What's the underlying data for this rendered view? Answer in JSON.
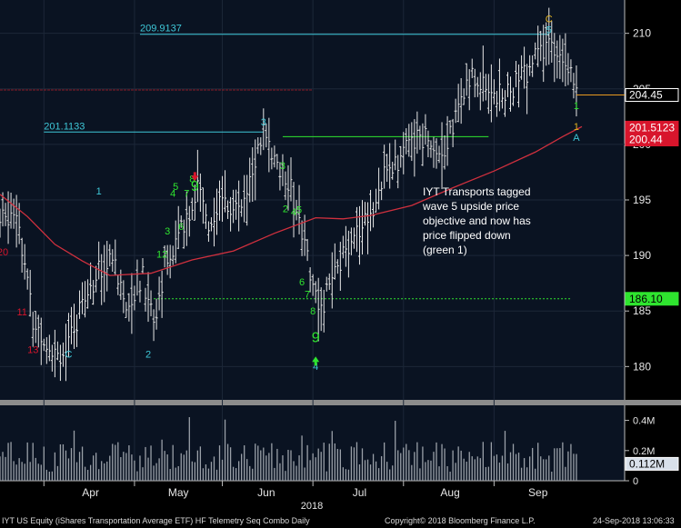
{
  "chart_data": {
    "type": "candlestick",
    "annotation": "IYT Transports tagged wave 5 upside price objective and now has price flipped down (green 1)",
    "x_axis": {
      "months": [
        "Apr",
        "May",
        "Jun",
        "Jul",
        "Aug",
        "Sep"
      ],
      "year": "2018"
    },
    "price_axis": {
      "ticks": [
        180,
        185,
        190,
        195,
        200,
        205,
        210
      ],
      "ylim": [
        177,
        213
      ]
    },
    "volume_axis": {
      "ticks": [
        "0.4M",
        "0.2M",
        "0"
      ],
      "ylim": [
        0,
        0.5
      ]
    },
    "moving_average": [
      [
        0,
        195.5
      ],
      [
        10,
        193.5
      ],
      [
        20,
        191
      ],
      [
        30,
        189.5
      ],
      [
        40,
        188.2
      ],
      [
        55,
        188.4
      ],
      [
        70,
        189.6
      ],
      [
        85,
        190.4
      ],
      [
        100,
        192
      ],
      [
        115,
        193.4
      ],
      [
        125,
        193.3
      ],
      [
        135,
        193.6
      ],
      [
        150,
        194.5
      ],
      [
        165,
        196.1
      ],
      [
        180,
        197.6
      ],
      [
        195,
        199.3
      ],
      [
        205,
        200.7
      ],
      [
        212,
        201.6
      ]
    ],
    "ohlc_path": [
      [
        0,
        193
      ],
      [
        6,
        194.5
      ],
      [
        12,
        184
      ],
      [
        18,
        182
      ],
      [
        24,
        181
      ],
      [
        32,
        187
      ],
      [
        40,
        190
      ],
      [
        46,
        186
      ],
      [
        52,
        188
      ],
      [
        56,
        184
      ],
      [
        60,
        189
      ],
      [
        66,
        192
      ],
      [
        72,
        196
      ],
      [
        76,
        193
      ],
      [
        80,
        195
      ],
      [
        86,
        194
      ],
      [
        92,
        197.5
      ],
      [
        96,
        201.3
      ],
      [
        100,
        198
      ],
      [
        104,
        197
      ],
      [
        108,
        194.5
      ],
      [
        112,
        190
      ],
      [
        116,
        185
      ],
      [
        120,
        187
      ],
      [
        124,
        189
      ],
      [
        128,
        192
      ],
      [
        134,
        193.5
      ],
      [
        140,
        197
      ],
      [
        144,
        198.5
      ],
      [
        150,
        200
      ],
      [
        156,
        201
      ],
      [
        160,
        199
      ],
      [
        164,
        201
      ],
      [
        168,
        204
      ],
      [
        172,
        206
      ],
      [
        178,
        205
      ],
      [
        184,
        204
      ],
      [
        190,
        206
      ],
      [
        196,
        208
      ],
      [
        200,
        209
      ],
      [
        204,
        208.5
      ],
      [
        206,
        208
      ],
      [
        208,
        207
      ],
      [
        210,
        204.5
      ]
    ],
    "reference_lines": [
      {
        "value": 209.9137,
        "label": "209.9137",
        "color": "#3ec8d8",
        "from": 51,
        "to": 200
      },
      {
        "value": 201.1133,
        "label": "201.1133",
        "color": "#3ec8d8",
        "from": 16,
        "to": 96
      },
      {
        "value": 200.7,
        "label": "",
        "color": "#2fe52f",
        "from": 103,
        "to": 178
      },
      {
        "value": 204.9,
        "label": "",
        "color": "#8a1c26",
        "from": 0,
        "to": 114
      },
      {
        "value": 186.1,
        "label": "",
        "color": "#2fe52f",
        "from": 56,
        "to": 208
      }
    ],
    "price_labels": [
      {
        "text": "204.45",
        "value": 204.45,
        "bg": "#000000",
        "fg": "#ffffff",
        "border": "#ffffff"
      },
      {
        "text": "201.5123",
        "value": 201.5123,
        "bg": "#d8152c",
        "fg": "#ffffff",
        "border": "#d8152c"
      },
      {
        "text": "200.44",
        "value": 200.44,
        "bg": "#d8152c",
        "fg": "#ffffff",
        "border": "#d8152c"
      },
      {
        "text": "186.10",
        "value": 186.1,
        "bg": "#2fe52f",
        "fg": "#000000",
        "border": "#2fe52f"
      }
    ],
    "volume_label": {
      "text": "0.112M",
      "value": 0.112
    },
    "wave_labels": [
      {
        "text": "C",
        "x": 200,
        "y": 211,
        "color": "#e0b020"
      },
      {
        "text": "5",
        "x": 200,
        "y": 210,
        "color": "#3ec8d8"
      },
      {
        "text": "3",
        "x": 96,
        "y": 201.7,
        "color": "#3ec8d8"
      },
      {
        "text": "1",
        "x": 36,
        "y": 195.5,
        "color": "#3ec8d8"
      },
      {
        "text": "2",
        "x": 54,
        "y": 180.8,
        "color": "#3ec8d8"
      },
      {
        "text": "4",
        "x": 115,
        "y": 179.7,
        "color": "#3ec8d8"
      },
      {
        "text": "C",
        "x": 25,
        "y": 180.8,
        "color": "#3ec8d8"
      },
      {
        "text": "1",
        "x": 210,
        "y": 203.2,
        "color": "#2fe52f"
      },
      {
        "text": "1",
        "x": 210,
        "y": 201.3,
        "color": "#e0b020"
      },
      {
        "text": "A",
        "x": 210,
        "y": 200.3,
        "color": "#3ec8d8"
      },
      {
        "text": "9",
        "x": 115,
        "y": 182.2,
        "color": "#2fe52f"
      },
      {
        "text": "9",
        "x": 71,
        "y": 195.8,
        "color": "#2fe52f"
      },
      {
        "text": "8",
        "x": 70,
        "y": 196.6,
        "color": "#2fe52f"
      },
      {
        "text": "7",
        "x": 68,
        "y": 195.3,
        "color": "#2fe52f"
      },
      {
        "text": "6",
        "x": 66,
        "y": 192.3,
        "color": "#2fe52f"
      },
      {
        "text": "5",
        "x": 64,
        "y": 195.9,
        "color": "#2fe52f"
      },
      {
        "text": "4",
        "x": 63,
        "y": 195.3,
        "color": "#2fe52f"
      },
      {
        "text": "3",
        "x": 61,
        "y": 191.9,
        "color": "#2fe52f"
      },
      {
        "text": "12",
        "x": 59,
        "y": 189.8,
        "color": "#2fe52f"
      },
      {
        "text": "3",
        "x": 103,
        "y": 197.8,
        "color": "#2fe52f"
      },
      {
        "text": "2",
        "x": 104,
        "y": 193.9,
        "color": "#2fe52f"
      },
      {
        "text": "4",
        "x": 107,
        "y": 193.6,
        "color": "#2fe52f"
      },
      {
        "text": "5",
        "x": 109,
        "y": 193.8,
        "color": "#2fe52f"
      },
      {
        "text": "6",
        "x": 110,
        "y": 187.3,
        "color": "#2fe52f"
      },
      {
        "text": "7",
        "x": 112,
        "y": 186.2,
        "color": "#2fe52f"
      },
      {
        "text": "8",
        "x": 114,
        "y": 184.7,
        "color": "#2fe52f"
      },
      {
        "text": "11",
        "x": 8,
        "y": 184.6,
        "color": "#d8152c"
      },
      {
        "text": "13",
        "x": 12,
        "y": 181.2,
        "color": "#d8152c"
      },
      {
        "text": "20",
        "x": 1,
        "y": 190,
        "color": "#d8152c"
      }
    ],
    "arrows": [
      {
        "x": 115,
        "y": 180.5,
        "color": "#2fe52f",
        "direction": "up"
      },
      {
        "x": 71,
        "y": 197.1,
        "color": "#d8152c",
        "direction": "down"
      }
    ]
  },
  "footer": {
    "left": "IYT US Equity (iShares Transportation Average ETF) HF Telemetry Seq Combo  Daily",
    "center": "Copyright© 2018 Bloomberg Finance L.P.",
    "right": "24-Sep-2018 13:06:33"
  }
}
